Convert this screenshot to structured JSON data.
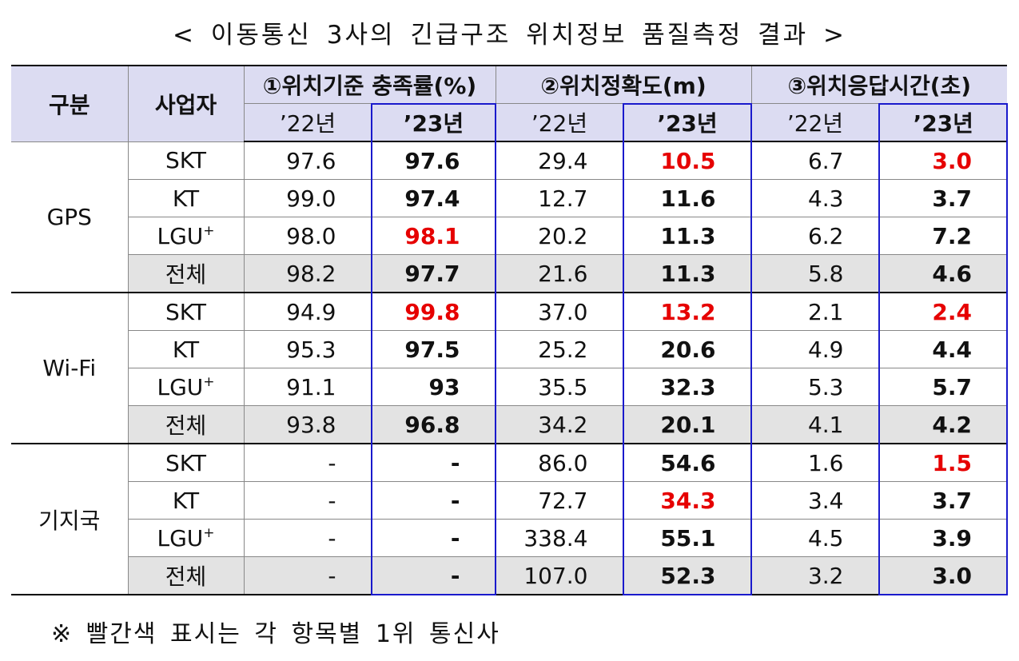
{
  "title": "< 이동통신 3사의 긴급구조 위치정보 품질측정 결과 >",
  "headers": {
    "category": "구분",
    "carrier": "사업자",
    "groups": [
      "①위치기준 충족률(%)",
      "②위치정확도(m)",
      "③위치응답시간(초)"
    ],
    "years": [
      "’22년",
      "’23년"
    ]
  },
  "sections": [
    {
      "name": "GPS",
      "rows": [
        {
          "carrier": "SKT",
          "sup": "",
          "v": [
            "97.6",
            "97.6",
            "29.4",
            "10.5",
            "6.7",
            "3.0"
          ],
          "red": [
            false,
            false,
            false,
            true,
            false,
            true
          ]
        },
        {
          "carrier": "KT",
          "sup": "",
          "v": [
            "99.0",
            "97.4",
            "12.7",
            "11.6",
            "4.3",
            "3.7"
          ],
          "red": [
            false,
            false,
            false,
            false,
            false,
            false
          ]
        },
        {
          "carrier": "LGU",
          "sup": "+",
          "v": [
            "98.0",
            "98.1",
            "20.2",
            "11.3",
            "6.2",
            "7.2"
          ],
          "red": [
            false,
            true,
            false,
            false,
            false,
            false
          ]
        },
        {
          "carrier": "전체",
          "sup": "",
          "v": [
            "98.2",
            "97.7",
            "21.6",
            "11.3",
            "5.8",
            "4.6"
          ],
          "red": [
            false,
            false,
            false,
            false,
            false,
            false
          ]
        }
      ]
    },
    {
      "name": "Wi-Fi",
      "rows": [
        {
          "carrier": "SKT",
          "sup": "",
          "v": [
            "94.9",
            "99.8",
            "37.0",
            "13.2",
            "2.1",
            "2.4"
          ],
          "red": [
            false,
            true,
            false,
            true,
            false,
            true
          ]
        },
        {
          "carrier": "KT",
          "sup": "",
          "v": [
            "95.3",
            "97.5",
            "25.2",
            "20.6",
            "4.9",
            "4.4"
          ],
          "red": [
            false,
            false,
            false,
            false,
            false,
            false
          ]
        },
        {
          "carrier": "LGU",
          "sup": "+",
          "v": [
            "91.1",
            "93",
            "35.5",
            "32.3",
            "5.3",
            "5.7"
          ],
          "red": [
            false,
            false,
            false,
            false,
            false,
            false
          ]
        },
        {
          "carrier": "전체",
          "sup": "",
          "v": [
            "93.8",
            "96.8",
            "34.2",
            "20.1",
            "4.1",
            "4.2"
          ],
          "red": [
            false,
            false,
            false,
            false,
            false,
            false
          ]
        }
      ]
    },
    {
      "name": "기지국",
      "rows": [
        {
          "carrier": "SKT",
          "sup": "",
          "v": [
            "-",
            "-",
            "86.0",
            "54.6",
            "1.6",
            "1.5"
          ],
          "red": [
            false,
            false,
            false,
            false,
            false,
            true
          ]
        },
        {
          "carrier": "KT",
          "sup": "",
          "v": [
            "-",
            "-",
            "72.7",
            "34.3",
            "3.4",
            "3.7"
          ],
          "red": [
            false,
            false,
            false,
            true,
            false,
            false
          ]
        },
        {
          "carrier": "LGU",
          "sup": "+",
          "v": [
            "-",
            "-",
            "338.4",
            "55.1",
            "4.5",
            "3.9"
          ],
          "red": [
            false,
            false,
            false,
            false,
            false,
            false
          ]
        },
        {
          "carrier": "전체",
          "sup": "",
          "v": [
            "-",
            "-",
            "107.0",
            "52.3",
            "3.2",
            "3.0"
          ],
          "red": [
            false,
            false,
            false,
            false,
            false,
            false
          ]
        }
      ]
    }
  ],
  "note": "※ 빨간색 표시는 각 항목별 1위 통신사",
  "colors": {
    "highlight_red": "#e60000",
    "box_blue": "#1a1acc",
    "header_bg": "#dcdcf2",
    "total_bg": "#e3e3e3"
  }
}
